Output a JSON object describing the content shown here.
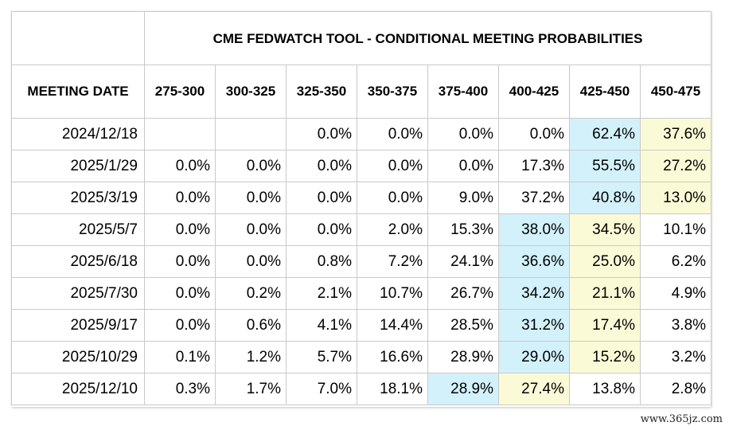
{
  "chart_data": {
    "type": "table",
    "title": "CME FEDWATCH TOOL - CONDITIONAL MEETING PROBABILITIES",
    "row_header": "MEETING DATE",
    "columns": [
      "275-300",
      "300-325",
      "325-350",
      "350-375",
      "375-400",
      "400-425",
      "425-450",
      "450-475"
    ],
    "rows": [
      {
        "date": "2024/12/18",
        "values": [
          "",
          "",
          "0.0%",
          "0.0%",
          "0.0%",
          "0.0%",
          "62.4%",
          "37.6%"
        ],
        "highlight": {
          "blue": 6,
          "yellow": 7
        }
      },
      {
        "date": "2025/1/29",
        "values": [
          "0.0%",
          "0.0%",
          "0.0%",
          "0.0%",
          "0.0%",
          "17.3%",
          "55.5%",
          "27.2%"
        ],
        "highlight": {
          "blue": 6,
          "yellow": 7
        }
      },
      {
        "date": "2025/3/19",
        "values": [
          "0.0%",
          "0.0%",
          "0.0%",
          "0.0%",
          "9.0%",
          "37.2%",
          "40.8%",
          "13.0%"
        ],
        "highlight": {
          "blue": 6,
          "yellow": 7
        }
      },
      {
        "date": "2025/5/7",
        "values": [
          "0.0%",
          "0.0%",
          "0.0%",
          "2.0%",
          "15.3%",
          "38.0%",
          "34.5%",
          "10.1%"
        ],
        "highlight": {
          "blue": 5,
          "yellow": 6
        }
      },
      {
        "date": "2025/6/18",
        "values": [
          "0.0%",
          "0.0%",
          "0.8%",
          "7.2%",
          "24.1%",
          "36.6%",
          "25.0%",
          "6.2%"
        ],
        "highlight": {
          "blue": 5,
          "yellow": 6
        }
      },
      {
        "date": "2025/7/30",
        "values": [
          "0.0%",
          "0.2%",
          "2.1%",
          "10.7%",
          "26.7%",
          "34.2%",
          "21.1%",
          "4.9%"
        ],
        "highlight": {
          "blue": 5,
          "yellow": 6
        }
      },
      {
        "date": "2025/9/17",
        "values": [
          "0.0%",
          "0.6%",
          "4.1%",
          "14.4%",
          "28.5%",
          "31.2%",
          "17.4%",
          "3.8%"
        ],
        "highlight": {
          "blue": 5,
          "yellow": 6
        }
      },
      {
        "date": "2025/10/29",
        "values": [
          "0.1%",
          "1.2%",
          "5.7%",
          "16.6%",
          "28.9%",
          "29.0%",
          "15.2%",
          "3.2%"
        ],
        "highlight": {
          "blue": 5,
          "yellow": 6
        }
      },
      {
        "date": "2025/12/10",
        "values": [
          "0.3%",
          "1.7%",
          "7.0%",
          "18.1%",
          "28.9%",
          "27.4%",
          "13.8%",
          "2.8%"
        ],
        "highlight": {
          "blue": 4,
          "yellow": 5
        }
      }
    ]
  },
  "colors": {
    "highlight_blue": "#d3f1fb",
    "highlight_yellow": "#fbfad7",
    "grid": "#c9c9c9"
  },
  "watermark": "www.365jz.com"
}
